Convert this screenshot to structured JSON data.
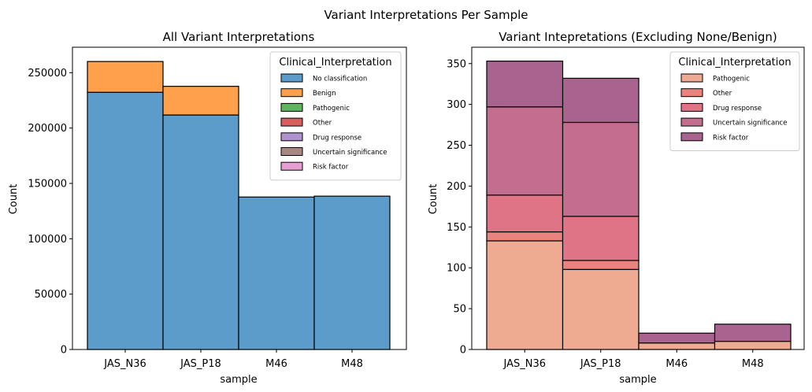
{
  "figure": {
    "suptitle": "Variant Interpretations Per Sample"
  },
  "chart_data": [
    {
      "type": "bar",
      "stacked": true,
      "title": "All Variant Interpretations",
      "xlabel": "sample",
      "ylabel": "Count",
      "categories": [
        "JAS_N36",
        "JAS_P18",
        "M46",
        "M48"
      ],
      "ylim": [
        0,
        273000
      ],
      "yticks": [
        0,
        50000,
        100000,
        150000,
        200000,
        250000
      ],
      "legend": {
        "title": "Clinical_Interpretation",
        "placement": "top-right"
      },
      "grid": false,
      "series": [
        {
          "name": "No classification",
          "color": "#5b9cca",
          "values": [
            232300,
            211800,
            137700,
            138500
          ]
        },
        {
          "name": "Benign",
          "color": "#ffa04c",
          "values": [
            27800,
            25900,
            0,
            0
          ]
        },
        {
          "name": "Pathogenic",
          "color": "#5fb45f",
          "values": [
            0,
            0,
            0,
            0
          ]
        },
        {
          "name": "Other",
          "color": "#d95f5f",
          "values": [
            0,
            0,
            0,
            0
          ]
        },
        {
          "name": "Drug response",
          "color": "#b092cf",
          "values": [
            0,
            0,
            0,
            0
          ]
        },
        {
          "name": "Uncertain significance",
          "color": "#a88682",
          "values": [
            0,
            0,
            0,
            0
          ]
        },
        {
          "name": "Risk factor",
          "color": "#e79fd3",
          "values": [
            0,
            0,
            0,
            0
          ]
        }
      ]
    },
    {
      "type": "bar",
      "stacked": true,
      "title": "Variant Intepretations (Excluding None/Benign)",
      "xlabel": "sample",
      "ylabel": "Count",
      "categories": [
        "JAS_N36",
        "JAS_P18",
        "M46",
        "M48"
      ],
      "ylim": [
        0,
        370
      ],
      "yticks": [
        0,
        50,
        100,
        150,
        200,
        250,
        300,
        350
      ],
      "legend": {
        "title": "Clinical_Interpretation",
        "placement": "top-right"
      },
      "grid": false,
      "series": [
        {
          "name": "Pathogenic",
          "color": "#efab91",
          "values": [
            133,
            98,
            8,
            10
          ]
        },
        {
          "name": "Other",
          "color": "#e8837e",
          "values": [
            11,
            11,
            0,
            0
          ]
        },
        {
          "name": "Drug response",
          "color": "#de7485",
          "values": [
            45,
            54,
            0,
            0
          ]
        },
        {
          "name": "Uncertain significance",
          "color": "#c46e8f",
          "values": [
            108,
            115,
            0,
            0
          ]
        },
        {
          "name": "Risk factor",
          "color": "#a8648e",
          "values": [
            56,
            54,
            12,
            21
          ]
        }
      ]
    }
  ]
}
